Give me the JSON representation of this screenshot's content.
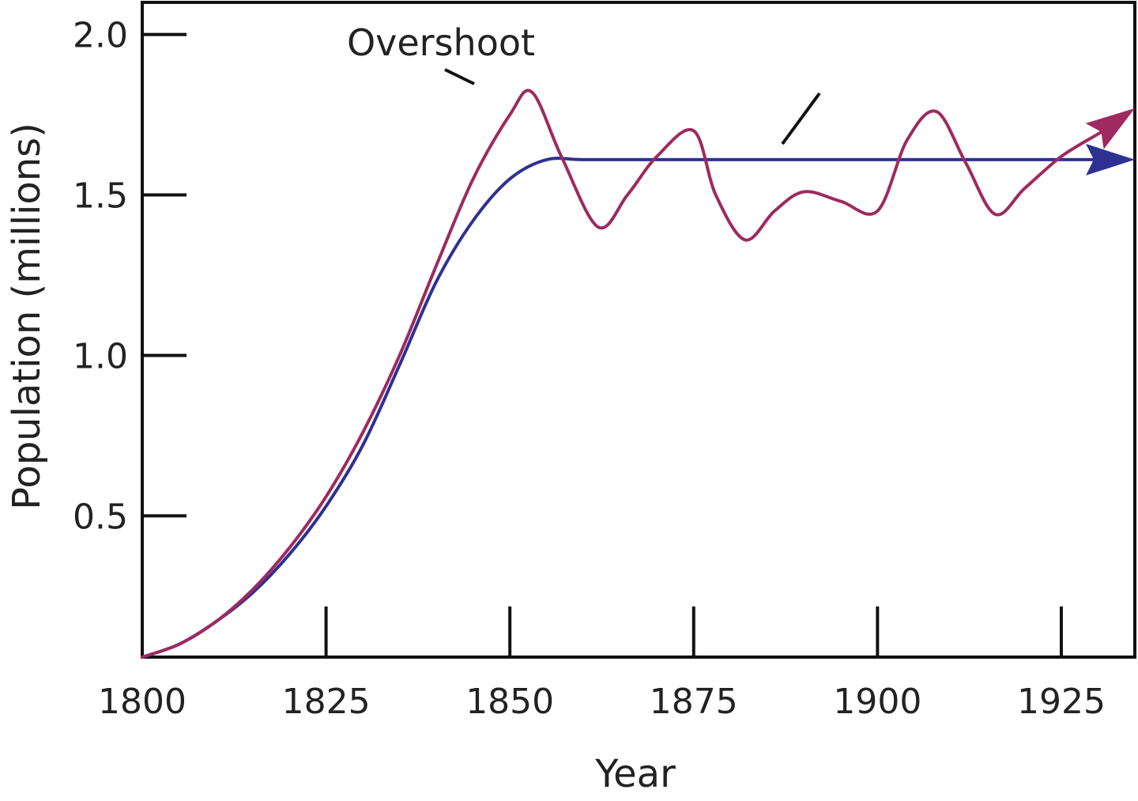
{
  "chart_data": {
    "type": "line",
    "title": "",
    "xlabel": "Year",
    "ylabel": "Population (millions)",
    "xlim": [
      1800,
      1935
    ],
    "ylim": [
      0.06,
      2.1
    ],
    "x_ticks": [
      1800,
      1825,
      1850,
      1875,
      1900,
      1925
    ],
    "x_tick_labels": [
      "1800",
      "1825",
      "1850",
      "1875",
      "1900",
      "1925"
    ],
    "y_ticks": [
      0.5,
      1.0,
      1.5,
      2.0
    ],
    "y_tick_labels": [
      "0.5",
      "1.0",
      "1.5",
      "2.0"
    ],
    "grid": false,
    "annotations": [
      {
        "text": "Overshoot",
        "x": 1853,
        "y": 1.82
      }
    ],
    "series": [
      {
        "color": "#2e3192",
        "x": [
          1800,
          1805,
          1810,
          1815,
          1820,
          1825,
          1830,
          1835,
          1840,
          1845,
          1850,
          1855,
          1860,
          1870,
          1880,
          1890,
          1900,
          1910,
          1920,
          1930,
          1935
        ],
        "y": [
          0.06,
          0.1,
          0.17,
          0.26,
          0.38,
          0.53,
          0.72,
          0.97,
          1.23,
          1.42,
          1.55,
          1.61,
          1.61,
          1.61,
          1.61,
          1.61,
          1.61,
          1.61,
          1.61,
          1.61,
          1.61
        ]
      },
      {
        "color": "#9e2a5f",
        "x": [
          1800,
          1805,
          1810,
          1815,
          1820,
          1825,
          1830,
          1835,
          1840,
          1845,
          1850,
          1853,
          1857,
          1862,
          1866,
          1870,
          1875,
          1878,
          1882,
          1886,
          1890,
          1895,
          1900,
          1904,
          1908,
          1912,
          1916,
          1920,
          1925,
          1930,
          1935
        ],
        "y": [
          0.06,
          0.1,
          0.17,
          0.27,
          0.4,
          0.56,
          0.76,
          1.0,
          1.28,
          1.55,
          1.75,
          1.82,
          1.62,
          1.4,
          1.5,
          1.62,
          1.7,
          1.5,
          1.36,
          1.45,
          1.51,
          1.48,
          1.45,
          1.67,
          1.76,
          1.6,
          1.44,
          1.52,
          1.62,
          1.69,
          1.77
        ]
      }
    ]
  }
}
